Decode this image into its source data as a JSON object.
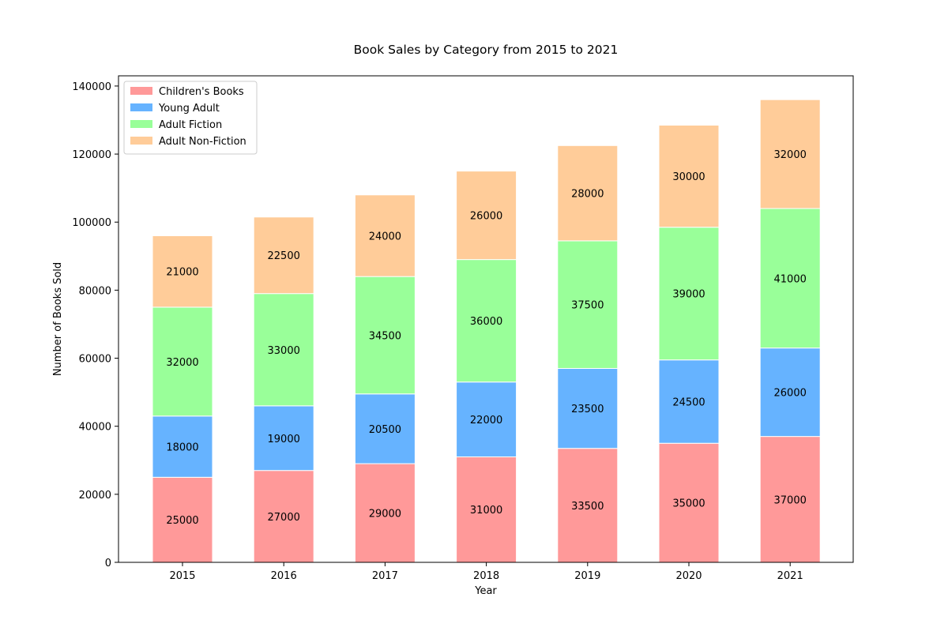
{
  "chart_data": {
    "type": "bar",
    "stacked": true,
    "title": "Book Sales by Category from 2015 to 2021",
    "xlabel": "Year",
    "ylabel": "Number of Books Sold",
    "categories": [
      "2015",
      "2016",
      "2017",
      "2018",
      "2019",
      "2020",
      "2021"
    ],
    "ylim": [
      0,
      143000
    ],
    "yticks": [
      0,
      20000,
      40000,
      60000,
      80000,
      100000,
      120000,
      140000
    ],
    "legend_position": "top-left",
    "grid": false,
    "data_labels": true,
    "series": [
      {
        "name": "Children's Books",
        "color": "#ff9999",
        "values": [
          25000,
          27000,
          29000,
          31000,
          33500,
          35000,
          37000
        ]
      },
      {
        "name": "Young Adult",
        "color": "#66b3ff",
        "values": [
          18000,
          19000,
          20500,
          22000,
          23500,
          24500,
          26000
        ]
      },
      {
        "name": "Adult Fiction",
        "color": "#99ff99",
        "values": [
          32000,
          33000,
          34500,
          36000,
          37500,
          39000,
          41000
        ]
      },
      {
        "name": "Adult Non-Fiction",
        "color": "#ffcc99",
        "values": [
          21000,
          22500,
          24000,
          26000,
          28000,
          30000,
          32000
        ]
      }
    ]
  }
}
